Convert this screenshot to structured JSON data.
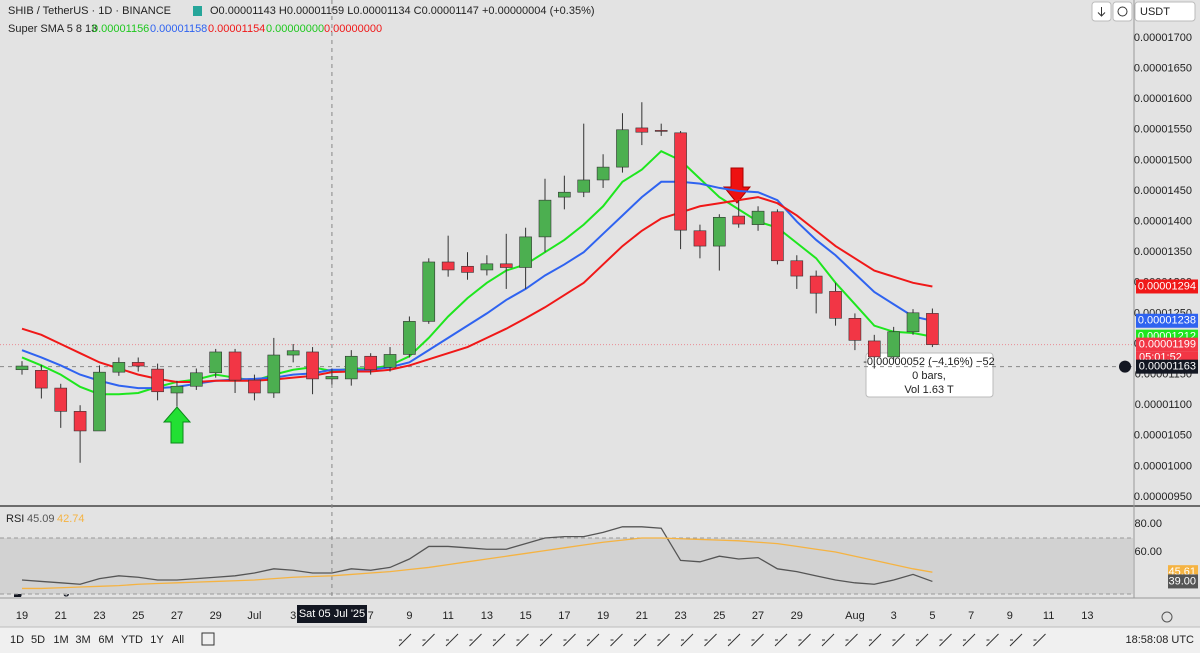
{
  "header": {
    "symbol": "SHIB / TetherUS · 1D · BINANCE",
    "ohlc": "O0.00001143 H0.00001159 L0.00001134 C0.00001147 +0.00000004 (+0.35%)",
    "currency": "USDT"
  },
  "indicator": {
    "name": "Super SMA 5 8 13",
    "values": [
      "0.00001156",
      "0.00001158",
      "0.00001154",
      "0.00000000",
      "0.00000000"
    ]
  },
  "chart_data": [
    {
      "type": "candlestick",
      "categories": [
        "19",
        null,
        "21",
        null,
        "23",
        null,
        "25",
        null,
        "27",
        null,
        "29",
        null,
        "Jul",
        null,
        "3",
        null,
        null,
        null,
        "7",
        null,
        "9",
        null,
        "11",
        null,
        "13",
        null,
        "15",
        null,
        "17",
        null,
        "19",
        null,
        "21",
        null,
        "23",
        null,
        "25",
        null,
        "27",
        null,
        "29",
        null,
        null,
        "Aug",
        null,
        "3",
        null,
        "5",
        null,
        "7",
        null,
        "9",
        null,
        "11",
        null,
        "13"
      ],
      "open": [
        1.158e-05,
        1.157e-05,
        1.128e-05,
        1.09e-05,
        1.058e-05,
        1.154e-05,
        1.17e-05,
        1.159e-05,
        1.12e-05,
        1.131e-05,
        1.153e-05,
        1.187e-05,
        1.141e-05,
        1.12e-05,
        1.182e-05,
        1.187e-05,
        1.143e-05,
        1.143e-05,
        1.18e-05,
        1.162e-05,
        1.183e-05,
        1.237e-05,
        1.334e-05,
        1.327e-05,
        1.321e-05,
        1.331e-05,
        1.325e-05,
        1.375e-05,
        1.44e-05,
        1.448e-05,
        1.468e-05,
        1.489e-05,
        1.553e-05,
        1.549e-05,
        1.545e-05,
        1.385e-05,
        1.36e-05,
        1.409e-05,
        1.395e-05,
        1.416e-05,
        1.336e-05,
        1.311e-05,
        1.286e-05,
        1.242e-05,
        1.205e-05,
        1.179e-05,
        1.22e-05,
        1.25e-05,
        null,
        null,
        null,
        null,
        null,
        null,
        null,
        null
      ],
      "high": [
        1.172e-05,
        1.166e-05,
        1.135e-05,
        1.1e-05,
        1.165e-05,
        1.178e-05,
        1.178e-05,
        1.168e-05,
        1.14e-05,
        1.16e-05,
        1.192e-05,
        1.192e-05,
        1.15e-05,
        1.21e-05,
        1.2e-05,
        1.195e-05,
        1.159e-05,
        1.19e-05,
        1.185e-05,
        1.195e-05,
        1.245e-05,
        1.34e-05,
        1.377e-05,
        1.35e-05,
        1.345e-05,
        1.38e-05,
        1.39e-05,
        1.47e-05,
        1.475e-05,
        1.56e-05,
        1.51e-05,
        1.577e-05,
        1.595e-05,
        1.56e-05,
        1.548e-05,
        1.395e-05,
        1.412e-05,
        1.435e-05,
        1.425e-05,
        1.42e-05,
        1.345e-05,
        1.32e-05,
        1.3e-05,
        1.25e-05,
        1.215e-05,
        1.228e-05,
        1.257e-05,
        1.258e-05,
        null,
        null,
        null,
        null,
        null,
        null,
        null,
        null
      ],
      "low": [
        1.15e-05,
        1.111e-05,
        1.063e-05,
        1.006e-05,
        1.058e-05,
        1.148e-05,
        1.155e-05,
        1.108e-05,
        1.098e-05,
        1.125e-05,
        1.145e-05,
        1.12e-05,
        1.108e-05,
        1.112e-05,
        1.17e-05,
        1.118e-05,
        1.134e-05,
        1.132e-05,
        1.15e-05,
        1.155e-05,
        1.178e-05,
        1.233e-05,
        1.31e-05,
        1.305e-05,
        1.312e-05,
        1.29e-05,
        1.29e-05,
        1.35e-05,
        1.42e-05,
        1.44e-05,
        1.455e-05,
        1.48e-05,
        1.525e-05,
        1.54e-05,
        1.355e-05,
        1.34e-05,
        1.32e-05,
        1.39e-05,
        1.385e-05,
        1.33e-05,
        1.29e-05,
        1.25e-05,
        1.23e-05,
        1.19e-05,
        1.16e-05,
        1.17e-05,
        1.215e-05,
        1.195e-05,
        null,
        null,
        null,
        null,
        null,
        null,
        null,
        null
      ],
      "close": [
        1.164e-05,
        1.128e-05,
        1.09e-05,
        1.058e-05,
        1.154e-05,
        1.17e-05,
        1.164e-05,
        1.122e-05,
        1.131e-05,
        1.153e-05,
        1.187e-05,
        1.141e-05,
        1.12e-05,
        1.182e-05,
        1.189e-05,
        1.143e-05,
        1.147e-05,
        1.18e-05,
        1.158e-05,
        1.183e-05,
        1.237e-05,
        1.334e-05,
        1.321e-05,
        1.317e-05,
        1.331e-05,
        1.325e-05,
        1.375e-05,
        1.435e-05,
        1.448e-05,
        1.468e-05,
        1.489e-05,
        1.55e-05,
        1.546e-05,
        1.548e-05,
        1.386e-05,
        1.36e-05,
        1.407e-05,
        1.396e-05,
        1.417e-05,
        1.336e-05,
        1.311e-05,
        1.283e-05,
        1.242e-05,
        1.206e-05,
        1.179e-05,
        1.22e-05,
        1.251e-05,
        1.199e-05,
        null,
        null,
        null,
        null,
        null,
        null,
        null,
        null
      ],
      "up_color": "#4caf50",
      "down_color": "#f23645",
      "lines": [
        {
          "color": "#1ee61e",
          "values": [
            1.178e-05,
            1.165e-05,
            1.15e-05,
            1.13e-05,
            1.118e-05,
            1.118e-05,
            1.12e-05,
            1.13e-05,
            1.138e-05,
            1.142e-05,
            1.15e-05,
            1.145e-05,
            1.14e-05,
            1.15e-05,
            1.158e-05,
            1.162e-05,
            1.156e-05,
            1.16e-05,
            1.16e-05,
            1.165e-05,
            1.18e-05,
            1.21e-05,
            1.245e-05,
            1.275e-05,
            1.3e-05,
            1.32e-05,
            1.33e-05,
            1.35e-05,
            1.37e-05,
            1.395e-05,
            1.425e-05,
            1.465e-05,
            1.485e-05,
            1.515e-05,
            1.5e-05,
            1.47e-05,
            1.44e-05,
            1.42e-05,
            1.4e-05,
            1.39e-05,
            1.365e-05,
            1.34e-05,
            1.3e-05,
            1.265e-05,
            1.23e-05,
            1.22e-05,
            1.218e-05,
            1.212e-05,
            null,
            null,
            null,
            null,
            null,
            null,
            null,
            null
          ]
        },
        {
          "color": "#2f63f0",
          "values": [
            1.19e-05,
            1.178e-05,
            1.165e-05,
            1.15e-05,
            1.14e-05,
            1.132e-05,
            1.128e-05,
            1.128e-05,
            1.13e-05,
            1.135e-05,
            1.14e-05,
            1.142e-05,
            1.143e-05,
            1.145e-05,
            1.15e-05,
            1.152e-05,
            1.158e-05,
            1.158e-05,
            1.158e-05,
            1.162e-05,
            1.17e-05,
            1.19e-05,
            1.21e-05,
            1.23e-05,
            1.25e-05,
            1.272e-05,
            1.29e-05,
            1.312e-05,
            1.33e-05,
            1.35e-05,
            1.38e-05,
            1.41e-05,
            1.44e-05,
            1.465e-05,
            1.465e-05,
            1.462e-05,
            1.455e-05,
            1.45e-05,
            1.448e-05,
            1.435e-05,
            1.4e-05,
            1.37e-05,
            1.345e-05,
            1.315e-05,
            1.285e-05,
            1.265e-05,
            1.245e-05,
            1.238e-05,
            null,
            null,
            null,
            null,
            null,
            null,
            null,
            null
          ]
        },
        {
          "color": "#f01818",
          "values": [
            1.225e-05,
            1.215e-05,
            1.2e-05,
            1.185e-05,
            1.17e-05,
            1.16e-05,
            1.15e-05,
            1.143e-05,
            1.138e-05,
            1.138e-05,
            1.14e-05,
            1.14e-05,
            1.14e-05,
            1.142e-05,
            1.145e-05,
            1.148e-05,
            1.154e-05,
            1.155e-05,
            1.155e-05,
            1.158e-05,
            1.165e-05,
            1.175e-05,
            1.185e-05,
            1.195e-05,
            1.21e-05,
            1.225e-05,
            1.242e-05,
            1.26e-05,
            1.28e-05,
            1.3e-05,
            1.33e-05,
            1.36e-05,
            1.385e-05,
            1.405e-05,
            1.415e-05,
            1.425e-05,
            1.43e-05,
            1.435e-05,
            1.44e-05,
            1.43e-05,
            1.41e-05,
            1.385e-05,
            1.36e-05,
            1.34e-05,
            1.32e-05,
            1.31e-05,
            1.3e-05,
            1.294e-05,
            null,
            null,
            null,
            null,
            null,
            null,
            null,
            null
          ]
        }
      ],
      "ylim": [
        9.37e-06,
        1.762e-05
      ],
      "yticks": [
        {
          "value": 9.5e-06,
          "label": "0.00000950"
        },
        {
          "value": 1e-05,
          "label": "0.00001000"
        },
        {
          "value": 1.05e-05,
          "label": "0.00001050"
        },
        {
          "value": 1.1e-05,
          "label": "0.00001100"
        },
        {
          "value": 1.15e-05,
          "label": "0.00001150"
        },
        {
          "value": 1.2e-05,
          "label": "0.00001200"
        },
        {
          "value": 1.25e-05,
          "label": "0.00001250"
        },
        {
          "value": 1.3e-05,
          "label": "0.00001300"
        },
        {
          "value": 1.35e-05,
          "label": "0.00001350"
        },
        {
          "value": 1.4e-05,
          "label": "0.00001400"
        },
        {
          "value": 1.45e-05,
          "label": "0.00001450"
        },
        {
          "value": 1.5e-05,
          "label": "0.00001500"
        },
        {
          "value": 1.55e-05,
          "label": "0.00001550"
        },
        {
          "value": 1.6e-05,
          "label": "0.00001600"
        },
        {
          "value": 1.65e-05,
          "label": "0.00001650"
        },
        {
          "value": 1.7e-05,
          "label": "0.00001700"
        }
      ],
      "price_labels": [
        {
          "value": 1.294e-05,
          "label": "0.00001294",
          "color": "#f01818"
        },
        {
          "value": 1.238e-05,
          "label": "0.00001238",
          "color": "#2f63f0"
        },
        {
          "value": 1.212e-05,
          "label": "0.00001212",
          "color": "#1ee61e"
        },
        {
          "value": 1.199e-05,
          "label": "0.00001199",
          "color": "#f23645"
        }
      ],
      "countdown": "05:01:52"
    },
    {
      "type": "line",
      "title": "RSI",
      "header_values": [
        "45.09",
        "42.74"
      ],
      "series": [
        {
          "color": "#555555",
          "values": [
            40,
            39,
            38,
            37,
            41,
            43,
            42,
            40,
            40,
            41,
            42,
            43,
            45,
            48,
            47,
            45,
            45,
            48,
            47,
            49,
            55,
            64,
            64,
            63,
            62,
            62,
            66,
            70,
            71,
            71,
            74,
            78,
            78,
            77,
            54,
            53,
            57,
            55,
            56,
            48,
            46,
            43,
            40,
            38,
            37,
            40,
            44,
            39,
            null,
            null,
            null,
            null,
            null,
            null,
            null,
            null
          ]
        },
        {
          "color": "#f5b342",
          "values": [
            34,
            34,
            34.5,
            35,
            35.5,
            36,
            37,
            37.5,
            38,
            38.5,
            39,
            39.5,
            40,
            41,
            42,
            42.5,
            43,
            44,
            45,
            46,
            47.5,
            49,
            51,
            53,
            55,
            57,
            59,
            61,
            63,
            65,
            67,
            68.5,
            70,
            70,
            69.5,
            69,
            68.5,
            68,
            67,
            66,
            64,
            62,
            60,
            57,
            54,
            51,
            48,
            45.61,
            null,
            null,
            null,
            null,
            null,
            null,
            null,
            null
          ]
        }
      ],
      "band": [
        30,
        70
      ],
      "ylim": [
        28.6,
        90
      ],
      "yticks": [
        {
          "value": 80,
          "label": "80.00"
        },
        {
          "value": 60,
          "label": "60.00"
        }
      ],
      "price_labels": [
        {
          "value": 45.61,
          "label": "45.61",
          "color": "#f5b342"
        },
        {
          "value": 39,
          "label": "39.00",
          "color": "#555555"
        }
      ]
    }
  ],
  "crosshair": {
    "date_label": "Sat 05 Jul '25",
    "price": {
      "value": 1.163e-05,
      "label": "0.00001163"
    }
  },
  "measure": {
    "change": "-0.00000052 (−4.16%) −52",
    "bars": "0 bars,",
    "volume": "Vol 1.63 T"
  },
  "toolbar": {
    "ranges": [
      "1D",
      "5D",
      "1M",
      "3M",
      "6M",
      "YTD",
      "1Y",
      "All"
    ],
    "clock": "18:58:08 UTC"
  },
  "logo": "TradingView"
}
